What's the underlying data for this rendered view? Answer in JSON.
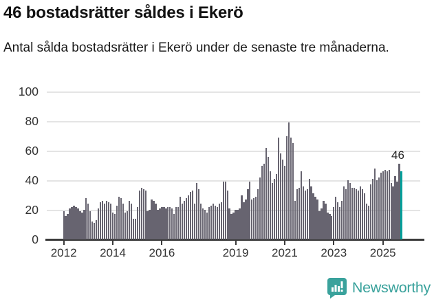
{
  "header": {
    "title": "46 bostadsrätter såldes i Ekerö",
    "subtitle": "Antal sålda bostadsrätter i Ekerö under de senaste tre månaderna."
  },
  "footer": {
    "brand": "Newsworthy",
    "logo_icon": "bar-chart-speech-bubble-icon"
  },
  "colors": {
    "bar": "#676470",
    "highlight": "#00a09b",
    "gridline": "#e4e4e4",
    "axis": "#3a3a3a",
    "tick_label": "#333333",
    "brand": "#3aa29c"
  },
  "chart_data": {
    "type": "bar",
    "title": "46 bostadsrätter såldes i Ekerö",
    "subtitle": "Antal sålda bostadsrätter i Ekerö under de senaste tre månaderna.",
    "unit": "antal sålda bostadsrätter (rullande tre månader)",
    "x_start": "2012-01",
    "x_end": "2025-10",
    "x_tick_labels": [
      "2012",
      "2014",
      "2016",
      "2019",
      "2021",
      "2023",
      "2025"
    ],
    "x_tick_month_index": [
      0,
      24,
      48,
      84,
      108,
      132,
      156
    ],
    "y_ticks": [
      0,
      20,
      40,
      60,
      80,
      100
    ],
    "ylim": [
      0,
      100
    ],
    "grid": true,
    "highlight_last": true,
    "annotation_label": "46",
    "values": [
      19,
      16,
      17,
      21,
      22,
      23,
      22,
      21,
      19,
      18,
      20,
      28,
      24,
      19,
      12,
      11,
      13,
      21,
      25,
      26,
      24,
      26,
      25,
      24,
      18,
      17,
      23,
      29,
      28,
      24,
      18,
      19,
      26,
      24,
      14,
      14,
      22,
      33,
      35,
      34,
      33,
      19,
      20,
      27,
      26,
      24,
      20,
      21,
      22,
      22,
      21,
      22,
      22,
      21,
      17,
      22,
      22,
      29,
      24,
      26,
      28,
      30,
      32,
      33,
      24,
      38,
      34,
      24,
      21,
      20,
      18,
      22,
      23,
      24,
      23,
      22,
      24,
      25,
      39,
      39,
      33,
      21,
      17,
      18,
      20,
      20,
      21,
      30,
      25,
      27,
      34,
      39,
      27,
      28,
      29,
      34,
      42,
      50,
      51,
      62,
      56,
      46,
      38,
      41,
      44,
      69,
      58,
      54,
      50,
      70,
      79,
      69,
      65,
      26,
      34,
      35,
      46,
      36,
      33,
      34,
      41,
      36,
      31,
      29,
      27,
      19,
      21,
      26,
      24,
      18,
      17,
      16,
      22,
      29,
      25,
      22,
      26,
      36,
      34,
      40,
      38,
      35,
      35,
      34,
      33,
      36,
      34,
      31,
      24,
      23,
      37,
      41,
      48,
      40,
      42,
      45,
      46,
      47,
      46,
      47,
      38,
      36,
      43,
      39,
      51,
      46
    ]
  }
}
